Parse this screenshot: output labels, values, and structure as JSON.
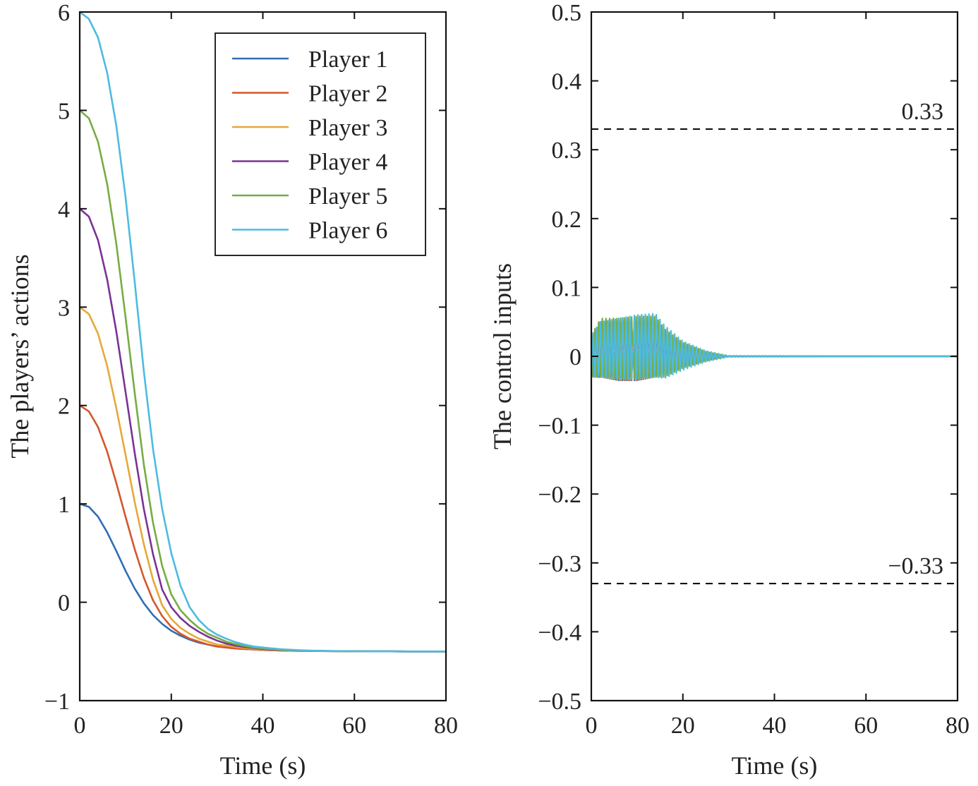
{
  "chart_data": [
    {
      "type": "line",
      "xlabel": "Time (s)",
      "ylabel": "The players’ actions",
      "xlim": [
        0,
        80
      ],
      "ylim": [
        -1,
        6
      ],
      "xticks": [
        0,
        20,
        40,
        60,
        80
      ],
      "yticks": [
        -1,
        0,
        1,
        2,
        3,
        4,
        5,
        6
      ],
      "xtick_labels": [
        "0",
        "20",
        "40",
        "60",
        "80"
      ],
      "ytick_labels": [
        "−1",
        "0",
        "1",
        "2",
        "3",
        "4",
        "5",
        "6"
      ],
      "grid": false,
      "legend": "top-right",
      "x": [
        0,
        2,
        4,
        6,
        8,
        10,
        12,
        14,
        16,
        18,
        20,
        22,
        24,
        26,
        28,
        30,
        32,
        34,
        36,
        38,
        40,
        44,
        48,
        52,
        56,
        60,
        64,
        68,
        72,
        76,
        80
      ],
      "series": [
        {
          "name": "Player 1",
          "color": "#2F6EB5",
          "values": [
            1.0,
            0.97,
            0.87,
            0.71,
            0.52,
            0.32,
            0.14,
            -0.01,
            -0.13,
            -0.22,
            -0.29,
            -0.34,
            -0.38,
            -0.41,
            -0.43,
            -0.45,
            -0.46,
            -0.47,
            -0.475,
            -0.48,
            -0.485,
            -0.49,
            -0.494,
            -0.496,
            -0.497,
            -0.498,
            -0.499,
            -0.499,
            -0.5,
            -0.5,
            -0.5
          ]
        },
        {
          "name": "Player 2",
          "color": "#D4572A",
          "values": [
            2.0,
            1.94,
            1.78,
            1.53,
            1.21,
            0.87,
            0.54,
            0.25,
            0.02,
            -0.14,
            -0.25,
            -0.32,
            -0.37,
            -0.4,
            -0.43,
            -0.45,
            -0.46,
            -0.47,
            -0.475,
            -0.48,
            -0.485,
            -0.49,
            -0.494,
            -0.496,
            -0.497,
            -0.498,
            -0.499,
            -0.499,
            -0.5,
            -0.5,
            -0.5
          ]
        },
        {
          "name": "Player 3",
          "color": "#E6A83A",
          "values": [
            3.0,
            2.93,
            2.73,
            2.4,
            1.97,
            1.5,
            1.02,
            0.59,
            0.23,
            -0.03,
            -0.17,
            -0.26,
            -0.32,
            -0.37,
            -0.4,
            -0.43,
            -0.44,
            -0.455,
            -0.465,
            -0.473,
            -0.48,
            -0.488,
            -0.493,
            -0.496,
            -0.497,
            -0.498,
            -0.499,
            -0.499,
            -0.5,
            -0.5,
            -0.5
          ]
        },
        {
          "name": "Player 4",
          "color": "#7B3294",
          "values": [
            4.0,
            3.92,
            3.68,
            3.28,
            2.75,
            2.14,
            1.52,
            0.95,
            0.49,
            0.13,
            -0.05,
            -0.16,
            -0.24,
            -0.3,
            -0.35,
            -0.39,
            -0.42,
            -0.44,
            -0.455,
            -0.465,
            -0.475,
            -0.486,
            -0.492,
            -0.495,
            -0.497,
            -0.498,
            -0.499,
            -0.499,
            -0.5,
            -0.5,
            -0.5
          ]
        },
        {
          "name": "Player 5",
          "color": "#77AC43",
          "values": [
            5.0,
            4.92,
            4.68,
            4.25,
            3.64,
            2.9,
            2.13,
            1.4,
            0.81,
            0.37,
            0.08,
            -0.08,
            -0.18,
            -0.26,
            -0.32,
            -0.36,
            -0.4,
            -0.425,
            -0.445,
            -0.46,
            -0.47,
            -0.484,
            -0.491,
            -0.495,
            -0.497,
            -0.498,
            -0.499,
            -0.499,
            -0.5,
            -0.5,
            -0.5
          ]
        },
        {
          "name": "Player 6",
          "color": "#4DBBE0",
          "values": [
            6.0,
            5.93,
            5.74,
            5.38,
            4.84,
            4.12,
            3.26,
            2.35,
            1.56,
            0.95,
            0.5,
            0.17,
            -0.05,
            -0.18,
            -0.27,
            -0.33,
            -0.37,
            -0.405,
            -0.43,
            -0.45,
            -0.46,
            -0.478,
            -0.488,
            -0.494,
            -0.496,
            -0.498,
            -0.499,
            -0.499,
            -0.5,
            -0.5,
            -0.5
          ]
        }
      ]
    },
    {
      "type": "line",
      "xlabel": "Time (s)",
      "ylabel": "The control inputs",
      "xlim": [
        0,
        80
      ],
      "ylim": [
        -0.5,
        0.5
      ],
      "xticks": [
        0,
        20,
        40,
        60,
        80
      ],
      "yticks": [
        -0.5,
        -0.4,
        -0.3,
        -0.2,
        -0.1,
        0,
        0.1,
        0.2,
        0.3,
        0.4,
        0.5
      ],
      "xtick_labels": [
        "0",
        "20",
        "40",
        "60",
        "80"
      ],
      "ytick_labels": [
        "−0.5",
        "−0.4",
        "−0.3",
        "−0.2",
        "−0.1",
        "0",
        "0.1",
        "0.2",
        "0.3",
        "0.4",
        "0.5"
      ],
      "grid": false,
      "bounds": [
        {
          "y": 0.33,
          "label": "0.33",
          "style": "dashed"
        },
        {
          "y": -0.33,
          "label": "−0.33",
          "style": "dashed"
        }
      ],
      "series": [
        {
          "color": "#2F6EB5",
          "envelope": [
            [
              0,
              0.03,
              -0.03
            ],
            [
              2,
              0.05,
              -0.03
            ],
            [
              6,
              0.05,
              -0.035
            ],
            [
              10,
              0.05,
              -0.035
            ],
            [
              14,
              0.045,
              -0.03
            ],
            [
              16,
              0.02,
              -0.015
            ],
            [
              20,
              0.01,
              -0.008
            ],
            [
              25,
              0.003,
              -0.003
            ],
            [
              30,
              0.0,
              0.0
            ],
            [
              80,
              0.0,
              0.0
            ]
          ]
        },
        {
          "color": "#D4572A",
          "envelope": [
            [
              0,
              0.03,
              -0.03
            ],
            [
              2,
              0.05,
              -0.03
            ],
            [
              6,
              0.05,
              -0.035
            ],
            [
              10,
              0.05,
              -0.035
            ],
            [
              14,
              0.05,
              -0.03
            ],
            [
              16,
              0.025,
              -0.02
            ],
            [
              20,
              0.012,
              -0.01
            ],
            [
              25,
              0.004,
              -0.004
            ],
            [
              30,
              0.0,
              0.0
            ],
            [
              80,
              0.0,
              0.0
            ]
          ]
        },
        {
          "color": "#E6A83A",
          "envelope": [
            [
              0,
              0.03,
              -0.03
            ],
            [
              2,
              0.05,
              -0.03
            ],
            [
              6,
              0.05,
              -0.033
            ],
            [
              10,
              0.052,
              -0.033
            ],
            [
              14,
              0.05,
              -0.03
            ],
            [
              16,
              0.03,
              -0.02
            ],
            [
              20,
              0.014,
              -0.012
            ],
            [
              25,
              0.005,
              -0.005
            ],
            [
              30,
              0.0,
              0.0
            ],
            [
              80,
              0.0,
              0.0
            ]
          ]
        },
        {
          "color": "#7B3294",
          "envelope": [
            [
              0,
              0.03,
              -0.03
            ],
            [
              2,
              0.05,
              -0.03
            ],
            [
              6,
              0.052,
              -0.033
            ],
            [
              10,
              0.055,
              -0.033
            ],
            [
              14,
              0.055,
              -0.03
            ],
            [
              16,
              0.035,
              -0.025
            ],
            [
              20,
              0.016,
              -0.014
            ],
            [
              25,
              0.006,
              -0.006
            ],
            [
              30,
              0.0,
              0.0
            ],
            [
              80,
              0.0,
              0.0
            ]
          ]
        },
        {
          "color": "#77AC43",
          "envelope": [
            [
              0,
              0.03,
              -0.03
            ],
            [
              2,
              0.055,
              -0.03
            ],
            [
              6,
              0.055,
              -0.033
            ],
            [
              10,
              0.058,
              -0.033
            ],
            [
              14,
              0.058,
              -0.03
            ],
            [
              16,
              0.04,
              -0.03
            ],
            [
              20,
              0.02,
              -0.017
            ],
            [
              25,
              0.007,
              -0.007
            ],
            [
              30,
              0.0,
              0.0
            ],
            [
              80,
              0.0,
              0.0
            ]
          ]
        },
        {
          "color": "#4DBBE0",
          "envelope": [
            [
              0,
              0.03,
              -0.03
            ],
            [
              2,
              0.05,
              -0.03
            ],
            [
              6,
              0.055,
              -0.033
            ],
            [
              10,
              0.06,
              -0.033
            ],
            [
              14,
              0.062,
              -0.03
            ],
            [
              16,
              0.045,
              -0.032
            ],
            [
              20,
              0.022,
              -0.02
            ],
            [
              25,
              0.008,
              -0.008
            ],
            [
              30,
              0.001,
              -0.001
            ],
            [
              80,
              0.0,
              0.0
            ]
          ]
        }
      ]
    }
  ]
}
